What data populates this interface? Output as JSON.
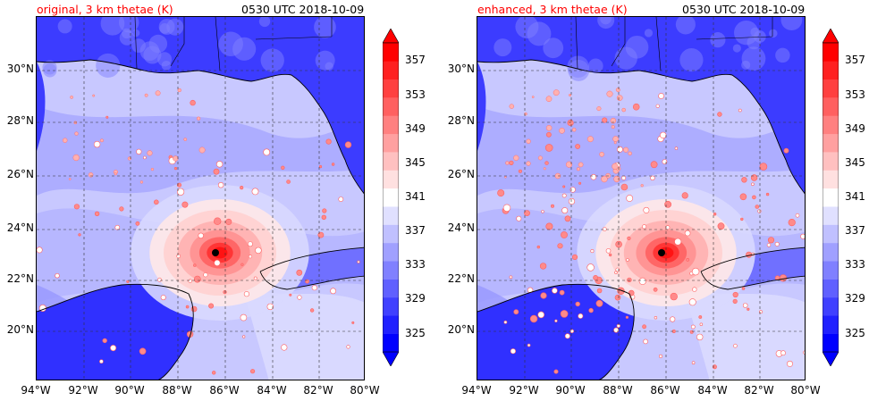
{
  "panels": [
    {
      "title_left": "original, 3 km thetae (K)",
      "title_right": "0530 UTC 2018-10-09",
      "rain_density": 0.55
    },
    {
      "title_left": "enhanced, 3 km thetae (K)",
      "title_right": "0530 UTC 2018-10-09",
      "rain_density": 1.0
    }
  ],
  "lat_labels": [
    "30°N",
    "28°N",
    "26°N",
    "24°N",
    "22°N",
    "20°N"
  ],
  "lon_labels": [
    "94°W",
    "92°W",
    "90°W",
    "88°W",
    "86°W",
    "84°W",
    "82°W",
    "80°W"
  ],
  "colorbar": {
    "tick_labels": [
      "357",
      "353",
      "349",
      "345",
      "341",
      "337",
      "333",
      "329",
      "325"
    ],
    "colors": [
      "#0000ff",
      "#2020ff",
      "#4040ff",
      "#6060ff",
      "#8080ff",
      "#a0a0ff",
      "#c0c0ff",
      "#e0e0ff",
      "#ffffff",
      "#ffe0e0",
      "#ffc0c0",
      "#ffa0a0",
      "#ff8080",
      "#ff6060",
      "#ff4040",
      "#ff2020",
      "#ff0000"
    ]
  },
  "colors": {
    "title_accent": "#ff0000",
    "ocean_base": "#c8c8ff",
    "land_base": "#3c3cff",
    "storm_core": "#ff2020",
    "storm_center": "#000000"
  }
}
